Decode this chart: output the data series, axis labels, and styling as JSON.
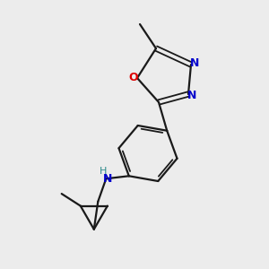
{
  "bg_color": "#ececec",
  "bond_color": "#1a1a1a",
  "N_color": "#0000cc",
  "O_color": "#dd0000",
  "teal_color": "#2e8b8b",
  "figsize": [
    3.0,
    3.0
  ],
  "dpi": 100,
  "xlim": [
    0,
    10
  ],
  "ylim": [
    0,
    10
  ]
}
